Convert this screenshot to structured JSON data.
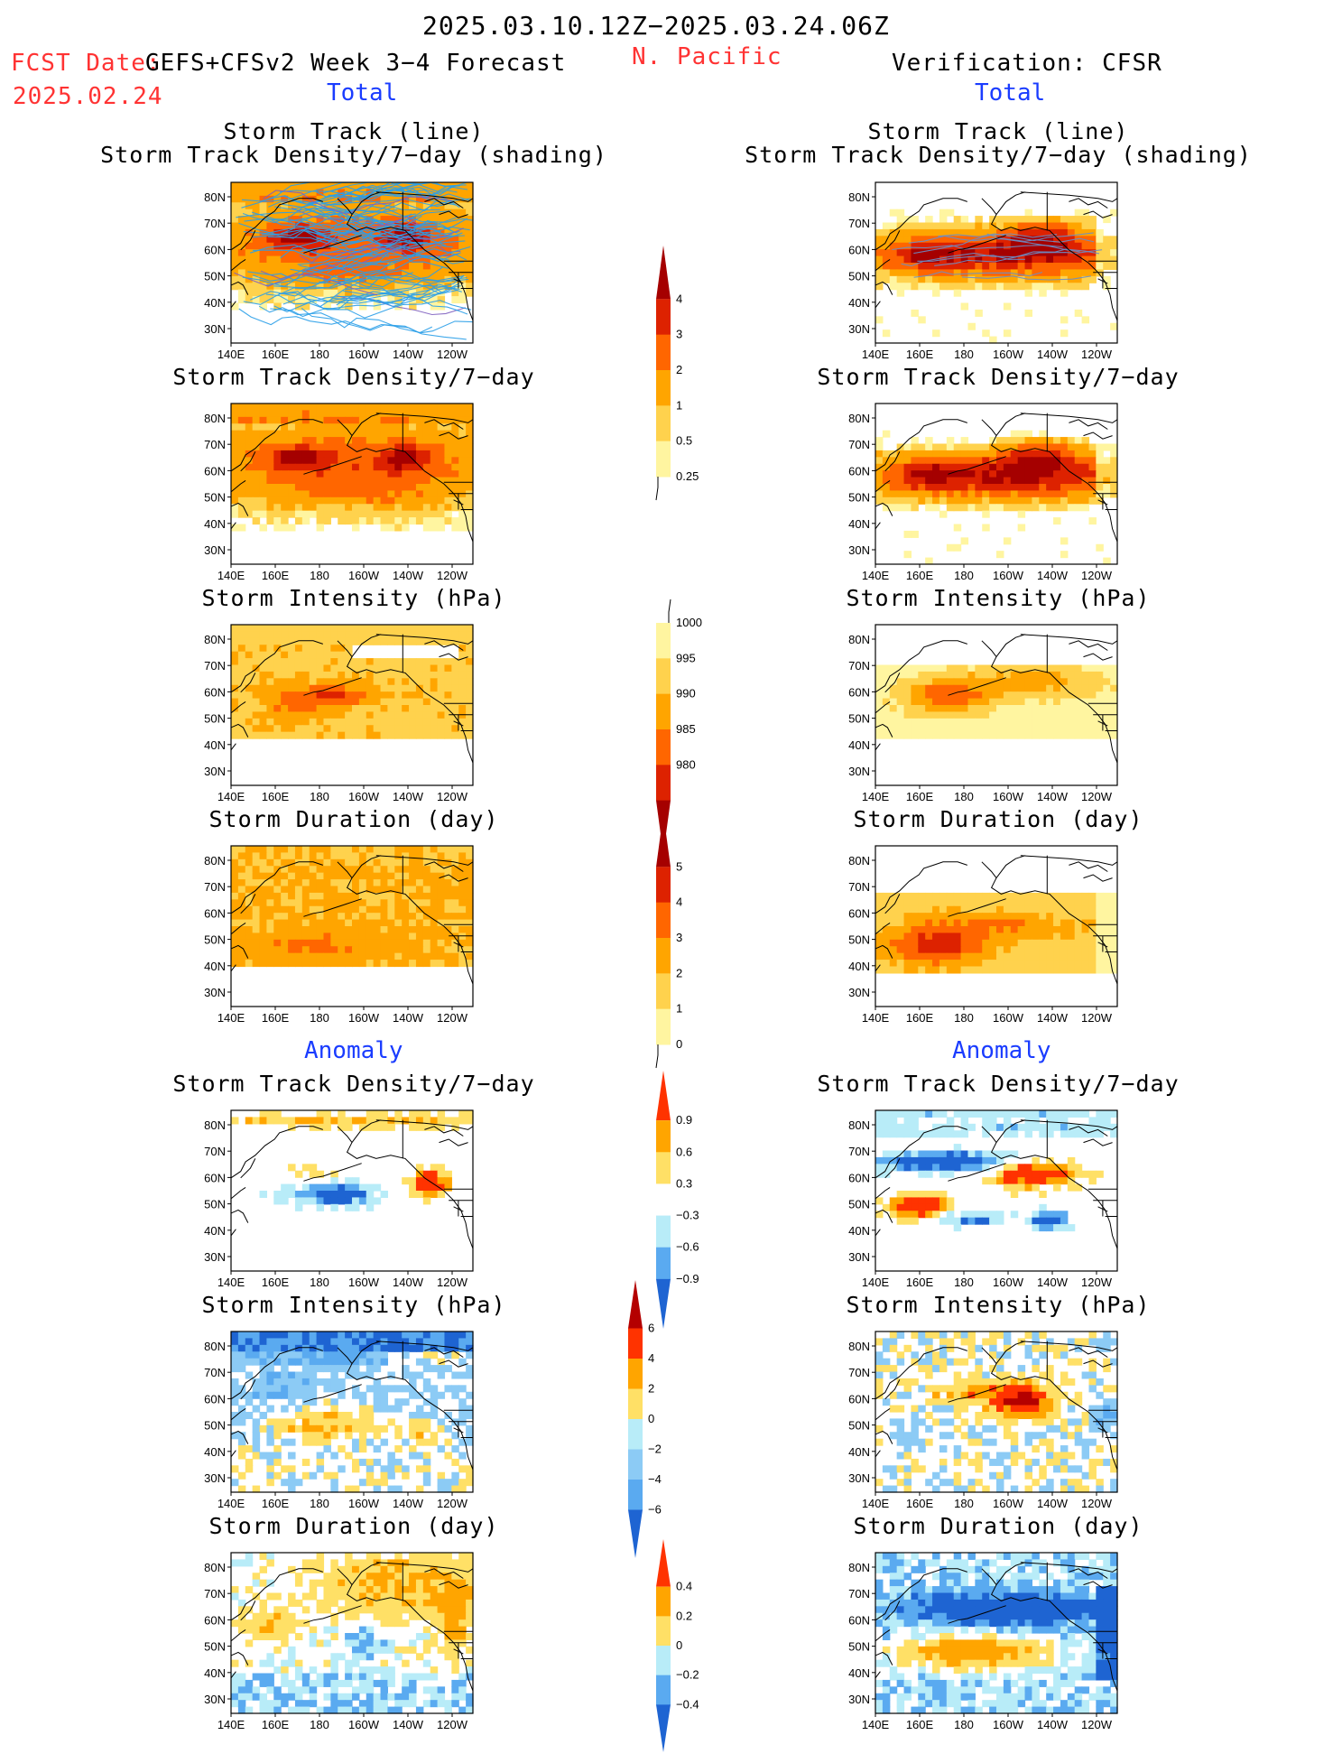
{
  "header": {
    "period": "2025.03.10.12Z−2025.03.24.06Z",
    "fcst_label": "FCST Date:",
    "fcst_date": "2025.02.24",
    "model_title": "GEFS+CFSv2 Week 3−4 Forecast",
    "region": "N. Pacific",
    "verification": "Verification: CFSR"
  },
  "sections": {
    "total": "Total",
    "anomaly": "Anomaly"
  },
  "axes": {
    "lat_labels": [
      "80N",
      "70N",
      "60N",
      "50N",
      "40N",
      "30N"
    ],
    "lon_labels": [
      "140E",
      "160E",
      "180",
      "160W",
      "140W",
      "120W"
    ]
  },
  "panels": {
    "left": [
      {
        "title_lines": [
          "Storm Track (line)",
          "Storm Track Density/7−day (shading)"
        ],
        "type": "track_total"
      },
      {
        "title_lines": [
          "Storm Track Density/7−day"
        ],
        "type": "density_total"
      },
      {
        "title_lines": [
          "Storm Intensity (hPa)"
        ],
        "type": "intensity_total"
      },
      {
        "title_lines": [
          "Storm Duration (day)"
        ],
        "type": "duration_total"
      },
      {
        "title_lines": [
          "Storm Track Density/7−day"
        ],
        "type": "density_anom"
      },
      {
        "title_lines": [
          "Storm Intensity (hPa)"
        ],
        "type": "intensity_anom"
      },
      {
        "title_lines": [
          "Storm Duration (day)"
        ],
        "type": "duration_anom"
      }
    ],
    "right": [
      {
        "title_lines": [
          "Storm Track (line)",
          "Storm Track Density/7−day (shading)"
        ],
        "type": "track_total"
      },
      {
        "title_lines": [
          "Storm Track Density/7−day"
        ],
        "type": "density_total"
      },
      {
        "title_lines": [
          "Storm Intensity (hPa)"
        ],
        "type": "intensity_total"
      },
      {
        "title_lines": [
          "Storm Duration (day)"
        ],
        "type": "duration_total"
      },
      {
        "title_lines": [
          "Storm Track Density/7−day"
        ],
        "type": "density_anom"
      },
      {
        "title_lines": [
          "Storm Intensity (hPa)"
        ],
        "type": "intensity_anom"
      },
      {
        "title_lines": [
          "Storm Duration (day)"
        ],
        "type": "duration_anom"
      }
    ]
  },
  "colorbars": {
    "density_total": {
      "labels": [
        "4",
        "3",
        "2",
        "1",
        "0.5",
        "0.25"
      ],
      "colors": [
        "#a50000",
        "#dd2200",
        "#ff6600",
        "#ffa500",
        "#ffd24d",
        "#fff5a0"
      ]
    },
    "intensity_total": {
      "labels": [
        "1000",
        "995",
        "990",
        "985",
        "980"
      ],
      "colors": [
        "#fff5a0",
        "#ffd24d",
        "#ffa500",
        "#ff6600",
        "#dd2200",
        "#a50000"
      ]
    },
    "duration_total": {
      "labels": [
        "5",
        "4",
        "3",
        "2",
        "1",
        "0"
      ],
      "colors": [
        "#a50000",
        "#dd2200",
        "#ff6600",
        "#ffa500",
        "#ffd24d",
        "#fff5a0"
      ]
    },
    "density_anom": {
      "labels": [
        "0.9",
        "0.6",
        "0.3",
        "−0.3",
        "−0.6",
        "−0.9"
      ],
      "colors": [
        "#ff3300",
        "#ffa500",
        "#ffe066",
        "#ffffff",
        "#b8ecf8",
        "#5aaaf0",
        "#1e64d2"
      ]
    },
    "intensity_anom": {
      "labels": [
        "6",
        "4",
        "2",
        "0",
        "−2",
        "−4",
        "−6"
      ],
      "colors": [
        "#b40000",
        "#ff3300",
        "#ffa500",
        "#ffe066",
        "#b8ecf8",
        "#8ccbf5",
        "#5aaaf0",
        "#1e64d2"
      ]
    },
    "duration_anom": {
      "labels": [
        "0.4",
        "0.2",
        "0",
        "−0.2",
        "−0.4"
      ],
      "colors": [
        "#ff3300",
        "#ffa500",
        "#ffe066",
        "#b8ecf8",
        "#5aaaf0",
        "#1e64d2"
      ]
    }
  }
}
